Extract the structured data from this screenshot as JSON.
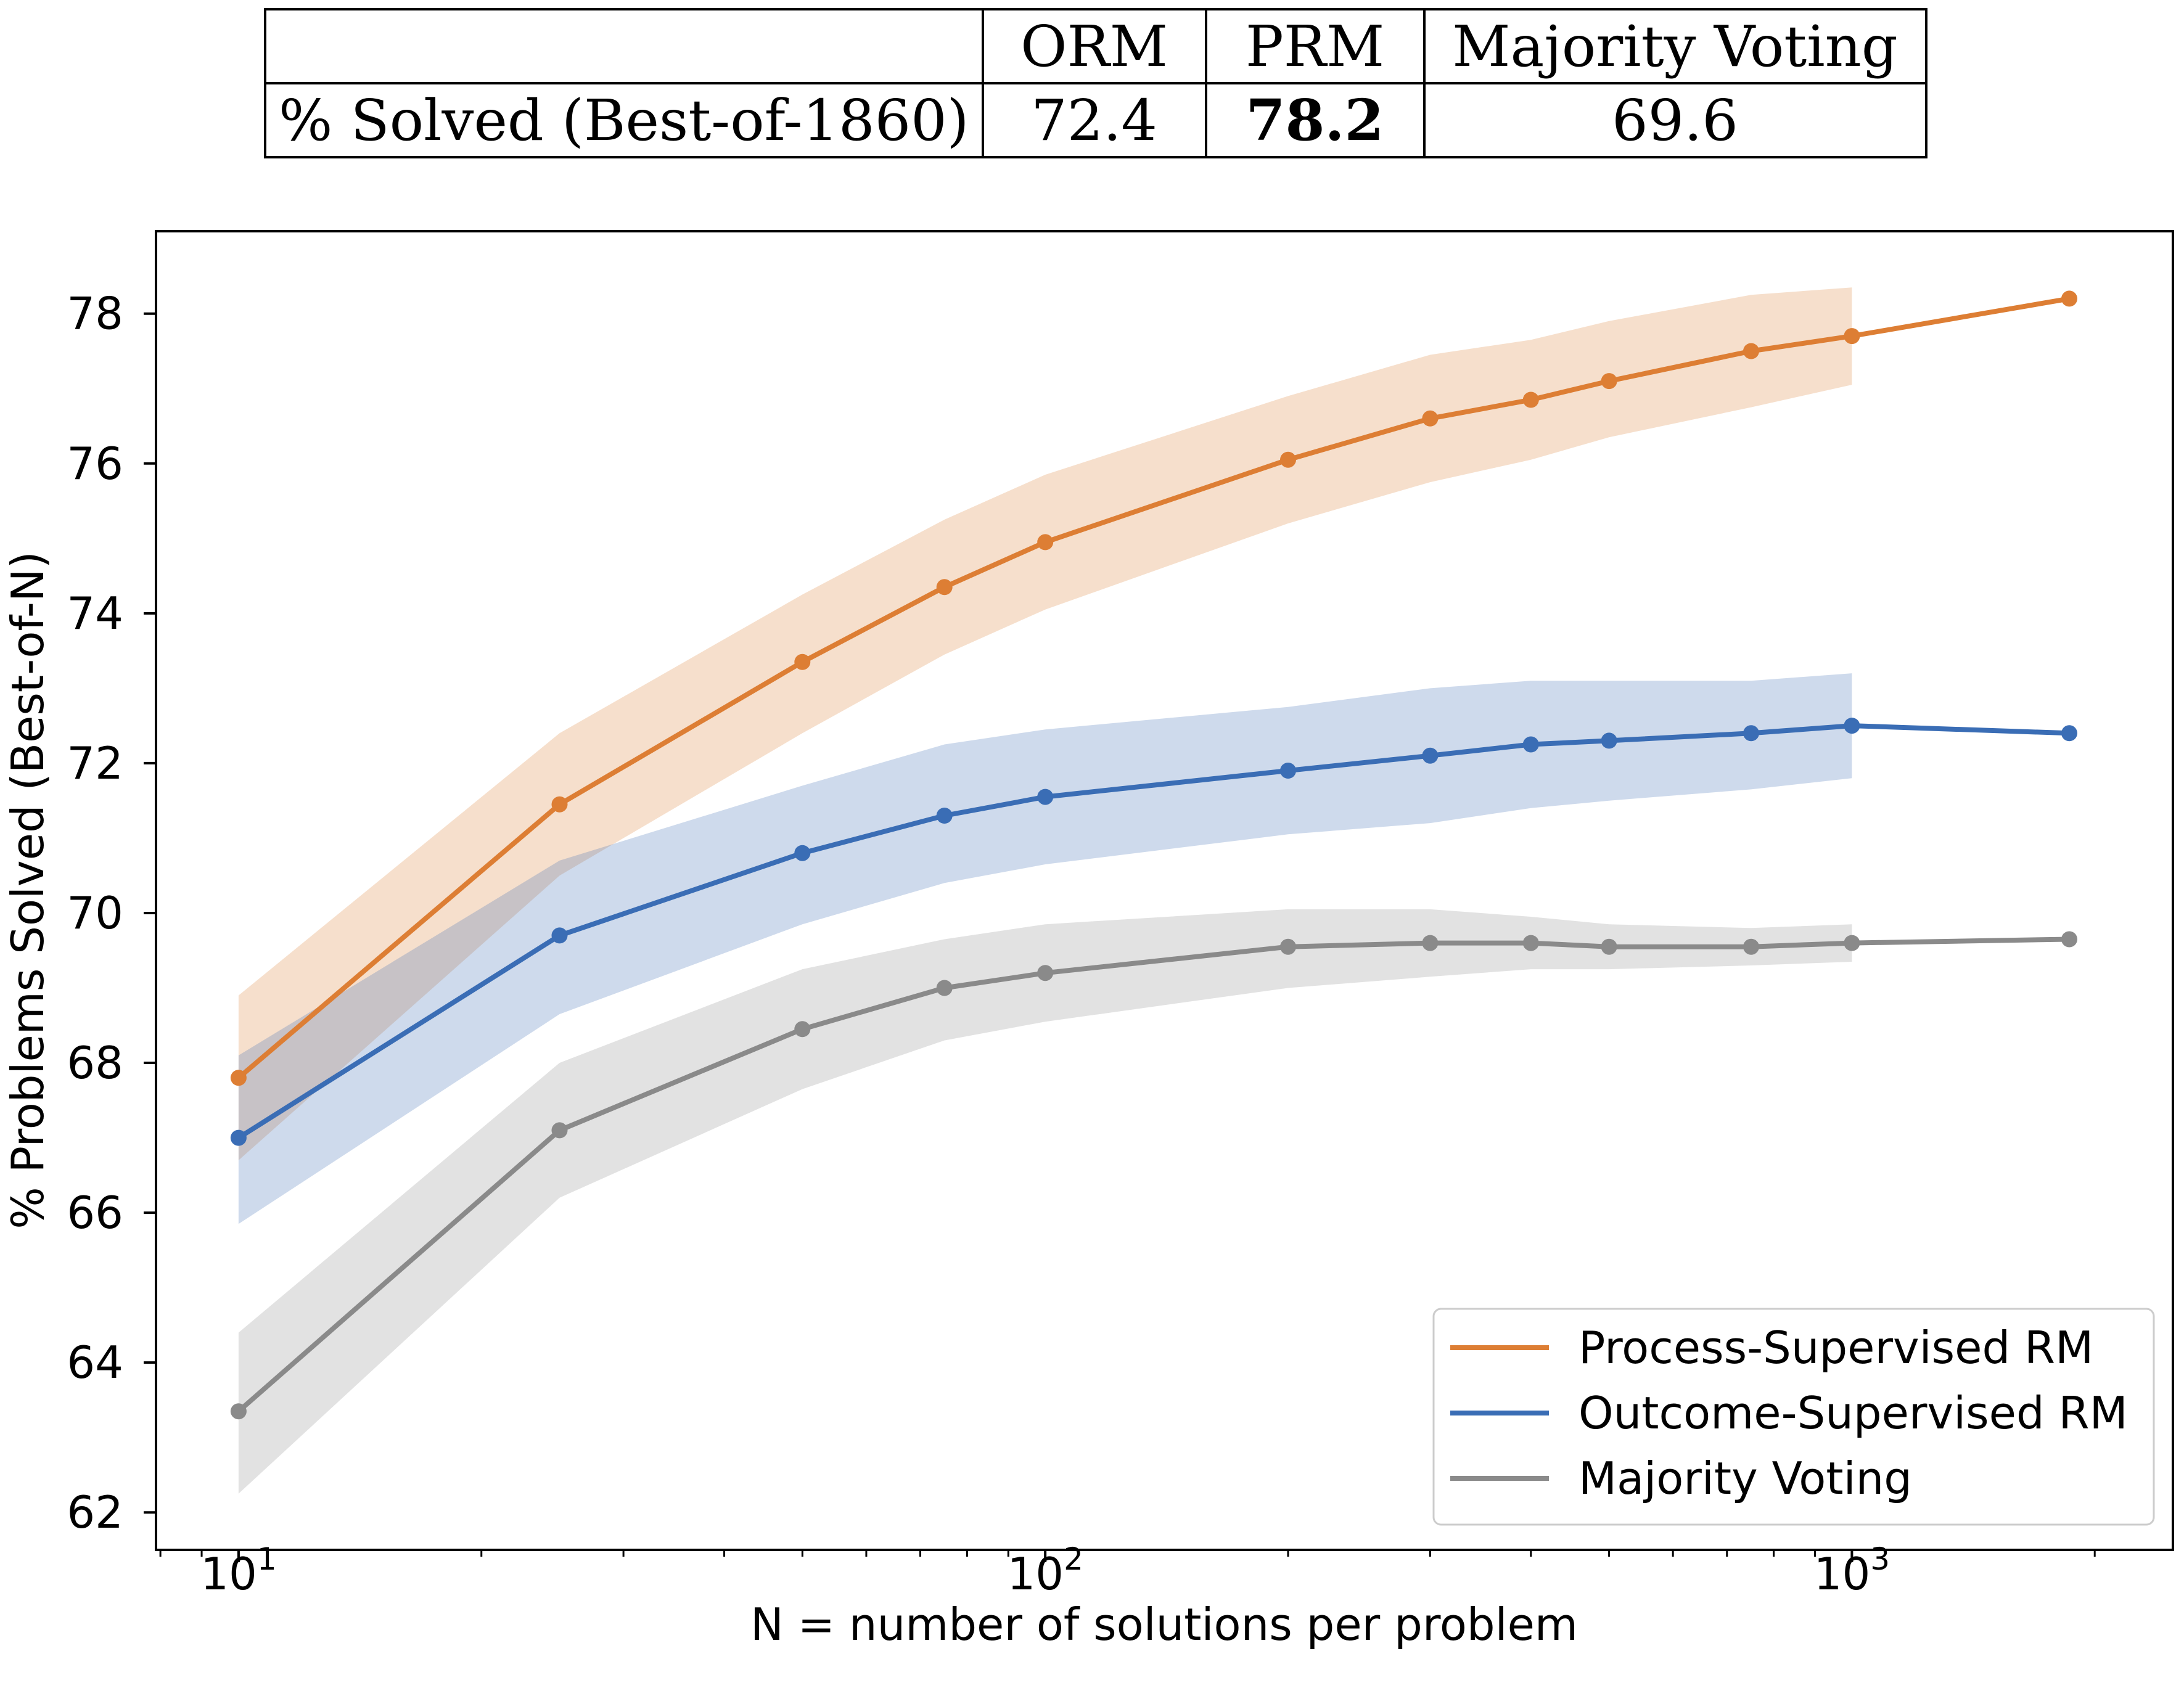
{
  "table": {
    "headers": [
      "",
      "ORM",
      "PRM",
      "Majority Voting"
    ],
    "row_label": "% Solved (Best-of-1860)",
    "values": [
      "72.4",
      "78.2",
      "69.6"
    ],
    "bold_index": 1
  },
  "chart_data": {
    "type": "line",
    "xlabel": "N = number of solutions per problem",
    "ylabel": "% Problems Solved (Best-of-N)",
    "xscale": "log",
    "xlim": [
      7.9,
      2500
    ],
    "ylim": [
      61.5,
      79.1
    ],
    "x_ticks": [
      10,
      100,
      1000
    ],
    "x_tick_labels": [
      {
        "base": "10",
        "exp": "1"
      },
      {
        "base": "10",
        "exp": "2"
      },
      {
        "base": "10",
        "exp": "3"
      }
    ],
    "y_ticks": [
      62,
      64,
      66,
      68,
      70,
      72,
      74,
      76,
      78
    ],
    "y_tick_labels": [
      "62",
      "64",
      "66",
      "68",
      "70",
      "72",
      "74",
      "76",
      "78"
    ],
    "grid": false,
    "legend_position": "lower-right",
    "series": [
      {
        "name": "Process-Supervised RM",
        "color": "#dd7e34",
        "x": [
          10,
          25,
          50,
          75,
          100,
          200,
          300,
          400,
          500,
          750,
          1000,
          1860
        ],
        "y": [
          67.8,
          71.45,
          73.35,
          74.35,
          74.95,
          76.05,
          76.6,
          76.85,
          77.1,
          77.5,
          77.7,
          78.2
        ],
        "band_x": [
          10,
          25,
          50,
          75,
          100,
          200,
          300,
          400,
          500,
          750,
          1000
        ],
        "band_lower": [
          66.7,
          70.5,
          72.4,
          73.45,
          74.05,
          75.2,
          75.75,
          76.05,
          76.35,
          76.75,
          77.05
        ],
        "band_upper": [
          68.9,
          72.4,
          74.25,
          75.25,
          75.85,
          76.9,
          77.45,
          77.65,
          77.9,
          78.25,
          78.35
        ]
      },
      {
        "name": "Outcome-Supervised RM",
        "color": "#3a6db5",
        "x": [
          10,
          25,
          50,
          75,
          100,
          200,
          300,
          400,
          500,
          750,
          1000,
          1860
        ],
        "y": [
          67.0,
          69.7,
          70.8,
          71.3,
          71.55,
          71.9,
          72.1,
          72.25,
          72.3,
          72.4,
          72.5,
          72.4
        ],
        "band_x": [
          10,
          25,
          50,
          75,
          100,
          200,
          300,
          400,
          500,
          750,
          1000
        ],
        "band_lower": [
          65.85,
          68.65,
          69.85,
          70.4,
          70.65,
          71.05,
          71.2,
          71.4,
          71.5,
          71.65,
          71.8
        ],
        "band_upper": [
          68.1,
          70.7,
          71.7,
          72.25,
          72.45,
          72.75,
          73.0,
          73.1,
          73.1,
          73.1,
          73.2
        ]
      },
      {
        "name": "Majority Voting",
        "color": "#8a8a8a",
        "x": [
          10,
          25,
          50,
          75,
          100,
          200,
          300,
          400,
          500,
          750,
          1000,
          1860
        ],
        "y": [
          63.35,
          67.1,
          68.45,
          69.0,
          69.2,
          69.55,
          69.6,
          69.6,
          69.55,
          69.55,
          69.6,
          69.65
        ],
        "band_x": [
          10,
          25,
          50,
          75,
          100,
          200,
          300,
          400,
          500,
          750,
          1000
        ],
        "band_lower": [
          62.25,
          66.2,
          67.65,
          68.3,
          68.55,
          69.0,
          69.15,
          69.25,
          69.25,
          69.3,
          69.35
        ],
        "band_upper": [
          64.4,
          68.0,
          69.25,
          69.65,
          69.85,
          70.05,
          70.05,
          69.95,
          69.85,
          69.8,
          69.85
        ]
      }
    ]
  }
}
